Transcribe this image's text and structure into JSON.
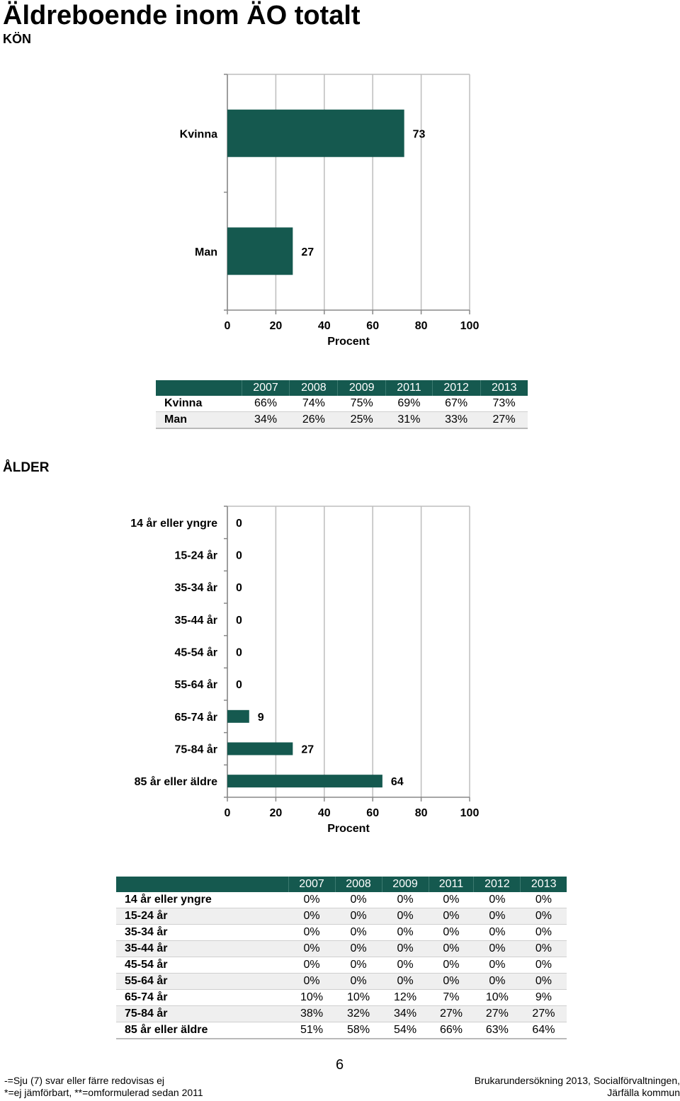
{
  "title": "Äldreboende inom ÄO totalt",
  "sections": {
    "kon": "KÖN",
    "alder": "ÅLDER"
  },
  "chart_data": [
    {
      "type": "bar",
      "orientation": "horizontal",
      "categories": [
        "Kvinna",
        "Man"
      ],
      "values": [
        73,
        27
      ],
      "data_labels": [
        "73",
        "27"
      ],
      "xlabel": "Procent",
      "xlim": [
        0,
        100
      ],
      "xticks": [
        "0",
        "20",
        "40",
        "60",
        "80",
        "100"
      ],
      "grid": true,
      "bar_color": "#15594f"
    },
    {
      "type": "bar",
      "orientation": "horizontal",
      "categories": [
        "14 år eller yngre",
        "15-24 år",
        "35-34 år",
        "35-44 år",
        "45-54 år",
        "55-64 år",
        "65-74 år",
        "75-84 år",
        "85 år eller äldre"
      ],
      "values": [
        0,
        0,
        0,
        0,
        0,
        0,
        9,
        27,
        64
      ],
      "data_labels": [
        "0",
        "0",
        "0",
        "0",
        "0",
        "0",
        "9",
        "27",
        "64"
      ],
      "xlabel": "Procent",
      "xlim": [
        0,
        100
      ],
      "xticks": [
        "0",
        "20",
        "40",
        "60",
        "80",
        "100"
      ],
      "grid": true,
      "bar_color": "#15594f"
    }
  ],
  "tables": {
    "kon": {
      "columns": [
        "",
        "2007",
        "2008",
        "2009",
        "2011",
        "2012",
        "2013"
      ],
      "rows": [
        [
          "Kvinna",
          "66%",
          "74%",
          "75%",
          "69%",
          "67%",
          "73%"
        ],
        [
          "Man",
          "34%",
          "26%",
          "25%",
          "31%",
          "33%",
          "27%"
        ]
      ]
    },
    "alder": {
      "columns": [
        "",
        "2007",
        "2008",
        "2009",
        "2011",
        "2012",
        "2013"
      ],
      "rows": [
        [
          "14 år eller yngre",
          "0%",
          "0%",
          "0%",
          "0%",
          "0%",
          "0%"
        ],
        [
          "15-24 år",
          "0%",
          "0%",
          "0%",
          "0%",
          "0%",
          "0%"
        ],
        [
          "35-34 år",
          "0%",
          "0%",
          "0%",
          "0%",
          "0%",
          "0%"
        ],
        [
          "35-44 år",
          "0%",
          "0%",
          "0%",
          "0%",
          "0%",
          "0%"
        ],
        [
          "45-54 år",
          "0%",
          "0%",
          "0%",
          "0%",
          "0%",
          "0%"
        ],
        [
          "55-64 år",
          "0%",
          "0%",
          "0%",
          "0%",
          "0%",
          "0%"
        ],
        [
          "65-74 år",
          "10%",
          "10%",
          "12%",
          "7%",
          "10%",
          "9%"
        ],
        [
          "75-84 år",
          "38%",
          "32%",
          "34%",
          "27%",
          "27%",
          "27%"
        ],
        [
          "85 år eller äldre",
          "51%",
          "58%",
          "54%",
          "66%",
          "63%",
          "64%"
        ]
      ]
    }
  },
  "page_number": "6",
  "footer": {
    "left_line1": "-=Sju (7) svar eller färre redovisas ej",
    "left_line2": "*=ej jämförbart, **=omformulerad sedan 2011",
    "right_line1": "Brukarundersökning 2013, Socialförvaltningen,",
    "right_line2": "Järfälla kommun"
  }
}
